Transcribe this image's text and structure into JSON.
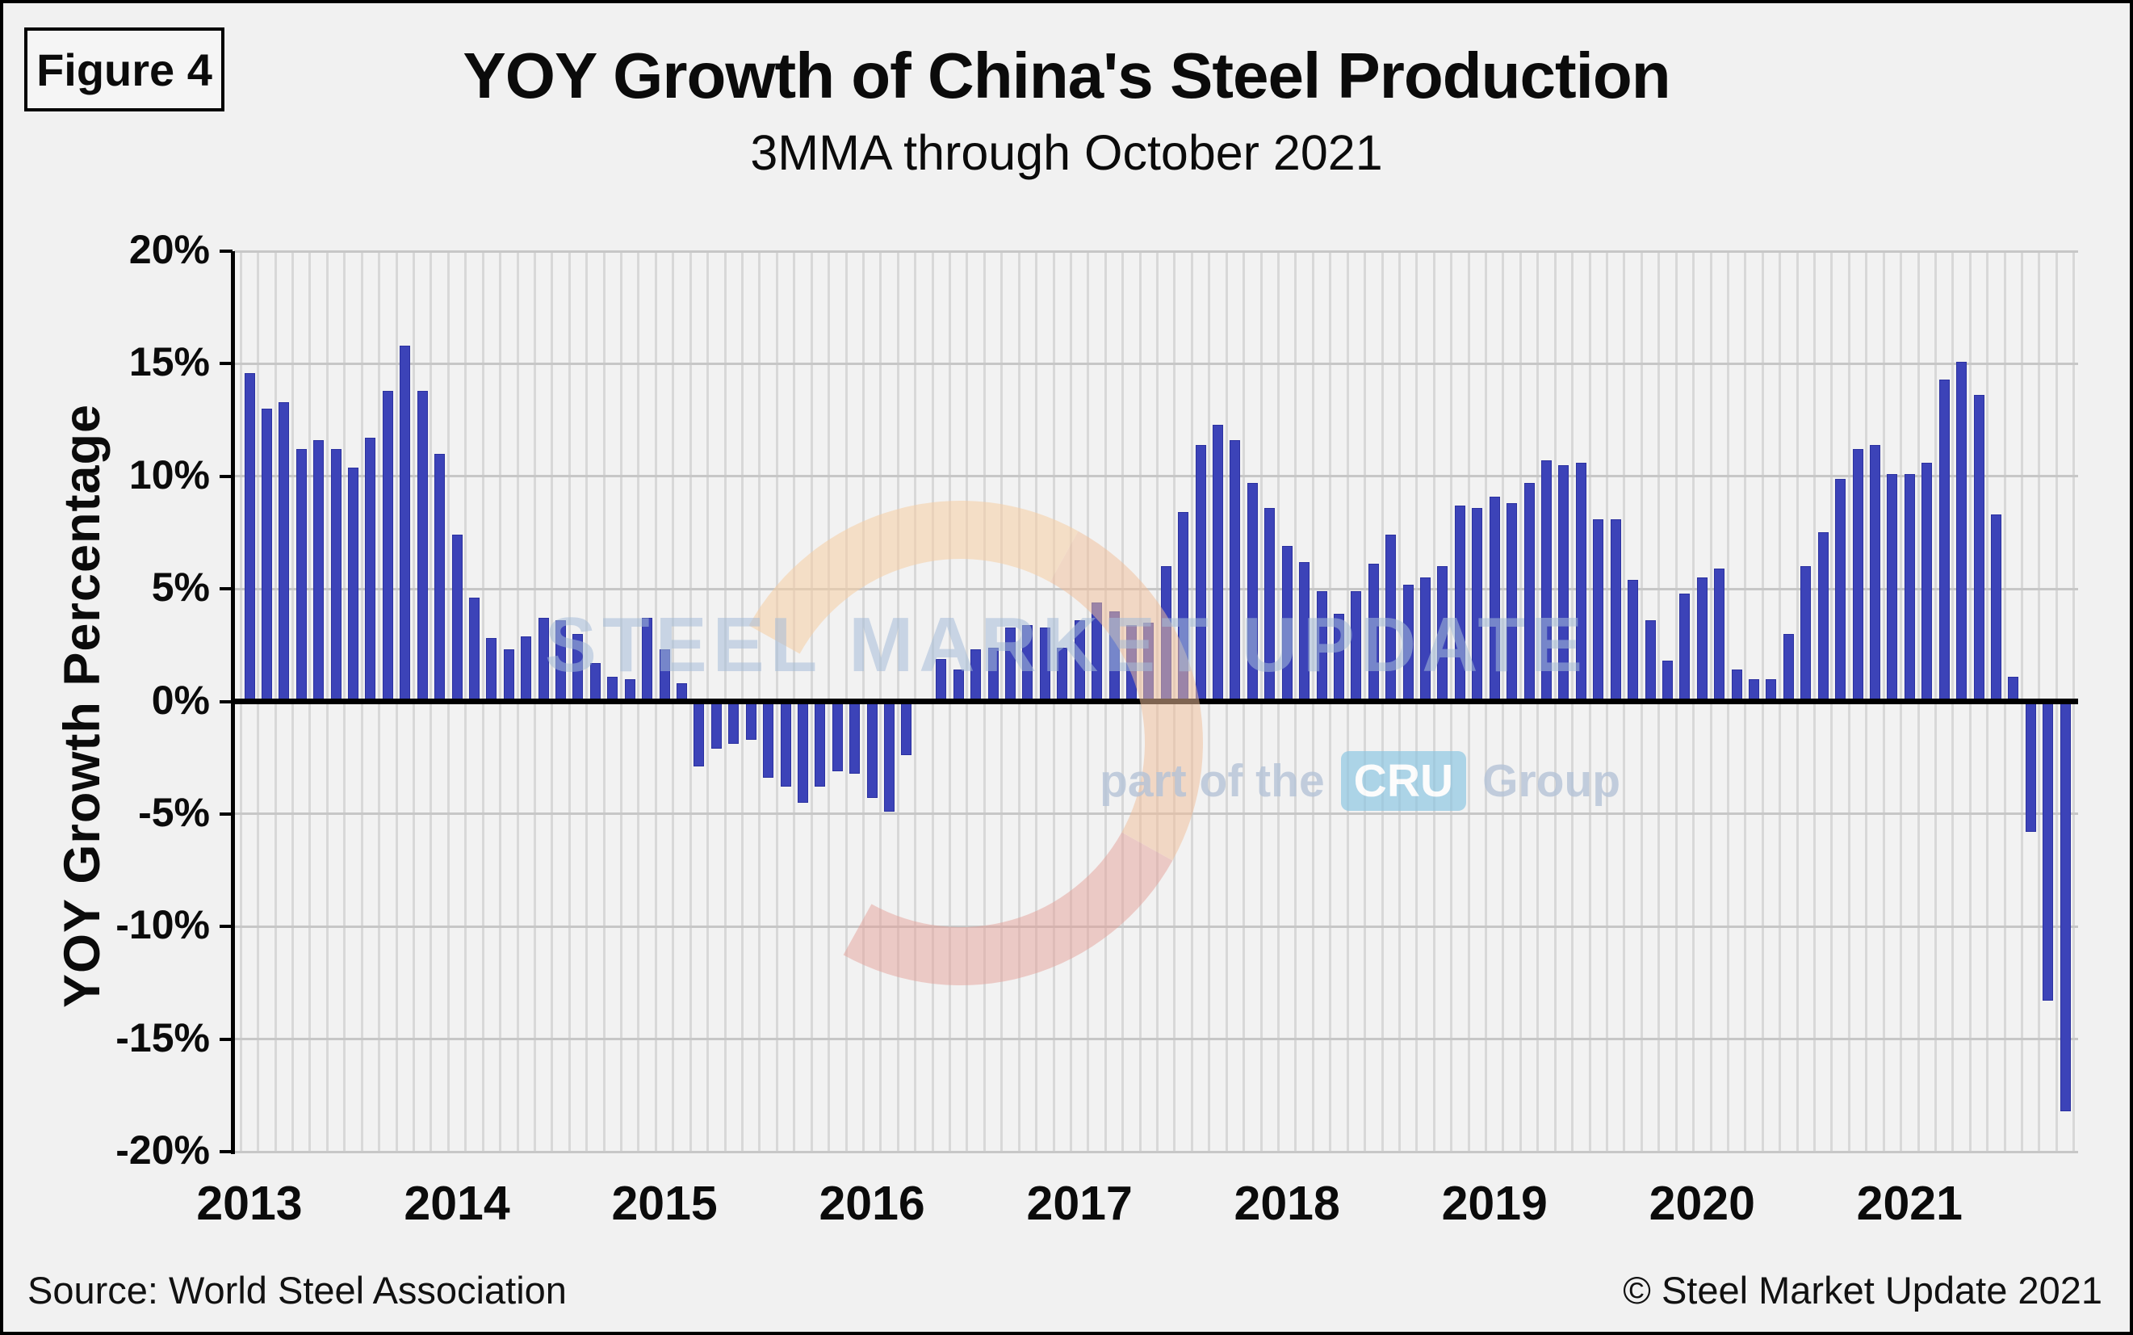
{
  "figure_label": "Figure 4",
  "title": "YOY Growth of China's Steel Production",
  "subtitle": "3MMA through October 2021",
  "footer": {
    "source": "Source: World Steel Association",
    "copyright": "© Steel Market Update 2021"
  },
  "watermark": {
    "text": "STEEL MARKET UPDATE",
    "tagline_prefix": "part of the",
    "tagline_box": "CRU",
    "tagline_suffix": "Group"
  },
  "colors": {
    "bar": "#3c43b8",
    "bar_edge": "#2b31a0",
    "background": "#f1f1f1",
    "gridline": "#c7c7c7",
    "watermark_text": "#a6bdd9",
    "watermark_arc_peach": "#f6cea4",
    "watermark_arc_pink": "#e5a098"
  },
  "chart_data": {
    "type": "bar",
    "title": "YOY Growth of China's Steel Production",
    "subtitle": "3MMA through October 2021",
    "xlabel": "",
    "ylabel": "YOY Growth Percentage",
    "ylim": [
      -20,
      20
    ],
    "ytick_step": 5,
    "ytick_labels": [
      "20%",
      "15%",
      "10%",
      "5%",
      "0%",
      "-5%",
      "-10%",
      "-15%",
      "-20%"
    ],
    "xtick_labels": [
      "2013",
      "2014",
      "2015",
      "2016",
      "2017",
      "2018",
      "2019",
      "2020",
      "2021"
    ],
    "grid": true,
    "legend": false,
    "start_month": "2013-01",
    "end_month": "2021-10",
    "values_by_year": {
      "2013": [
        14.6,
        13.0,
        13.3,
        11.2,
        11.6,
        11.2,
        10.4,
        11.7,
        13.8,
        15.8,
        13.8,
        11.0
      ],
      "2014": [
        7.4,
        4.6,
        2.8,
        2.3,
        2.9,
        3.7,
        3.6,
        3.0,
        1.7,
        1.1,
        1.0,
        3.7
      ],
      "2015": [
        2.3,
        0.8,
        -2.9,
        -2.1,
        -1.9,
        -1.7,
        -3.4,
        -3.8,
        -4.5,
        -3.8,
        -3.1,
        -3.2
      ],
      "2016": [
        -4.3,
        -4.9,
        -2.4,
        0.0,
        1.9,
        1.4,
        2.3,
        2.4,
        3.3,
        3.4,
        3.3,
        2.4
      ],
      "2017": [
        3.6,
        4.4,
        4.0,
        3.4,
        3.5,
        6.0,
        8.4,
        11.4,
        12.3,
        11.6,
        9.7,
        8.6
      ],
      "2018": [
        6.9,
        6.2,
        4.9,
        3.9,
        4.9,
        6.1,
        7.4,
        5.2,
        5.5,
        6.0,
        8.7,
        8.6
      ],
      "2019": [
        9.1,
        8.8,
        9.7,
        10.7,
        10.5,
        10.6,
        8.1,
        8.1,
        5.4,
        3.6,
        1.8,
        4.8
      ],
      "2020": [
        5.5,
        5.9,
        1.4,
        1.0,
        1.0,
        3.0,
        6.0,
        7.5,
        9.9,
        11.2,
        11.4,
        10.1
      ],
      "2021": [
        10.1,
        10.6,
        14.3,
        15.1,
        13.6,
        8.3,
        1.1,
        -5.8,
        -13.3,
        -18.2
      ]
    }
  }
}
